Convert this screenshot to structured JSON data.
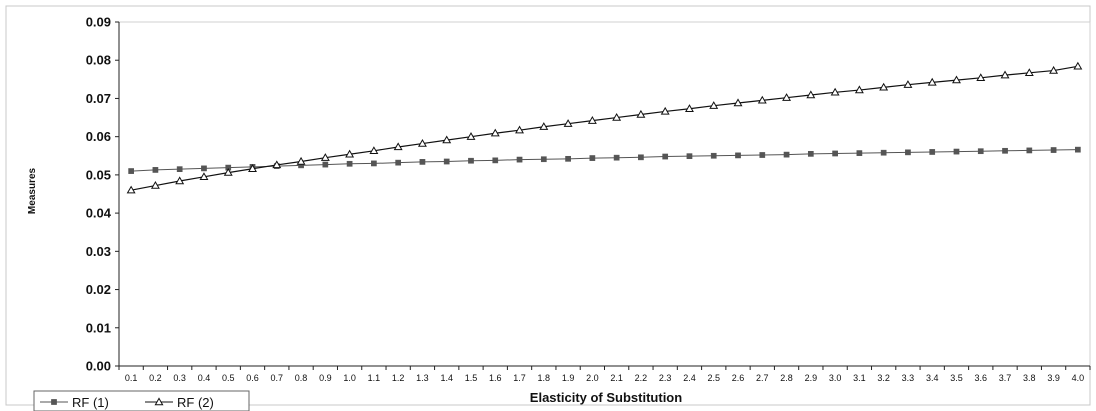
{
  "chart_data": {
    "type": "line",
    "title": "",
    "xlabel": "Elasticity of Substitution",
    "ylabel": "Measures",
    "ylim": [
      0,
      0.09
    ],
    "yticks": [
      "0.00",
      "0.01",
      "0.02",
      "0.03",
      "0.04",
      "0.05",
      "0.06",
      "0.07",
      "0.08",
      "0.09"
    ],
    "x": [
      "0.1",
      "0.2",
      "0.3",
      "0.4",
      "0.5",
      "0.6",
      "0.7",
      "0.8",
      "0.9",
      "1.0",
      "1.1",
      "1.2",
      "1.3",
      "1.4",
      "1.5",
      "1.6",
      "1.7",
      "1.8",
      "1.9",
      "2.0",
      "2.1",
      "2.2",
      "2.3",
      "2.4",
      "2.5",
      "2.6",
      "2.7",
      "2.8",
      "2.9",
      "3.0",
      "3.1",
      "3.2",
      "3.3",
      "3.4",
      "3.5",
      "3.6",
      "3.7",
      "3.8",
      "3.9",
      "4.0"
    ],
    "grid": false,
    "legend_position": "bottom-left",
    "series": [
      {
        "name": "RF (1)",
        "marker": "square",
        "color": "#555555",
        "values": [
          0.051,
          0.0513,
          0.0515,
          0.0517,
          0.0519,
          0.0521,
          0.0523,
          0.0525,
          0.0527,
          0.0529,
          0.053,
          0.0532,
          0.0534,
          0.0535,
          0.0537,
          0.0538,
          0.054,
          0.0541,
          0.0542,
          0.0544,
          0.0545,
          0.0546,
          0.0548,
          0.0549,
          0.055,
          0.0551,
          0.0552,
          0.0553,
          0.0555,
          0.0556,
          0.0557,
          0.0558,
          0.0559,
          0.056,
          0.0561,
          0.0562,
          0.0563,
          0.0564,
          0.0565,
          0.0566
        ]
      },
      {
        "name": "RF (2)",
        "marker": "triangle",
        "color": "#111111",
        "values": [
          0.046,
          0.0472,
          0.0484,
          0.0495,
          0.0506,
          0.0516,
          0.0526,
          0.0535,
          0.0545,
          0.0554,
          0.0563,
          0.0573,
          0.0582,
          0.0591,
          0.06,
          0.0609,
          0.0617,
          0.0626,
          0.0634,
          0.0642,
          0.065,
          0.0658,
          0.0666,
          0.0673,
          0.0681,
          0.0688,
          0.0695,
          0.0702,
          0.0709,
          0.0716,
          0.0722,
          0.0729,
          0.0736,
          0.0742,
          0.0748,
          0.0754,
          0.0761,
          0.0767,
          0.0773,
          0.0784
        ]
      }
    ]
  }
}
